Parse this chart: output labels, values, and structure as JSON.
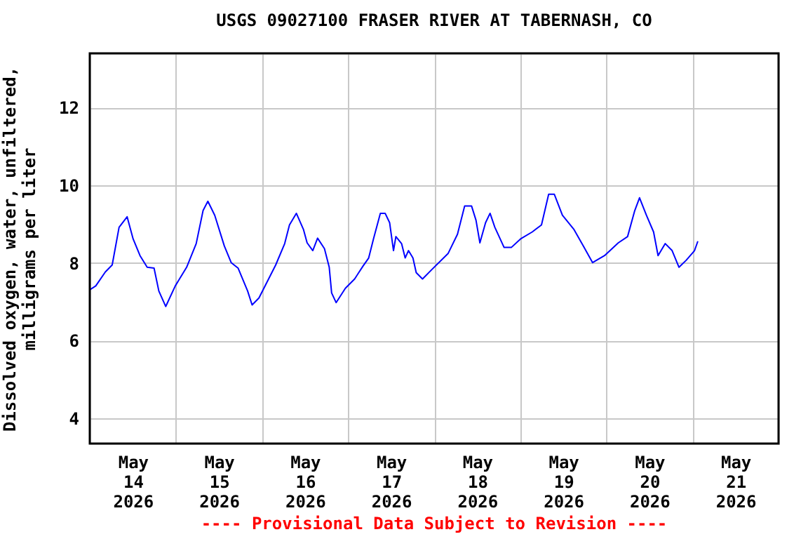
{
  "chart_data": {
    "type": "line",
    "title": "USGS 09027100 FRASER RIVER AT TABERNASH, CO",
    "ylabel": "Dissolved oxygen, water, unfiltered,\nmilligrams per liter",
    "annotations": [
      "---- Provisional Data Subject to Revision ----"
    ],
    "x": [
      "2026-05-14T00:00",
      "2026-05-14T01:40",
      "2026-05-14T04:20",
      "2026-05-14T06:15",
      "2026-05-14T08:10",
      "2026-05-14T10:25",
      "2026-05-14T12:05",
      "2026-05-14T14:00",
      "2026-05-14T16:00",
      "2026-05-14T17:55",
      "2026-05-14T19:15",
      "2026-05-14T21:10",
      "2026-05-14T23:50",
      "2026-05-15T03:00",
      "2026-05-15T05:40",
      "2026-05-15T07:35",
      "2026-05-15T08:55",
      "2026-05-15T10:50",
      "2026-05-15T13:30",
      "2026-05-15T15:25",
      "2026-05-15T17:20",
      "2026-05-15T20:00",
      "2026-05-15T21:15",
      "2026-05-15T23:10",
      "2026-05-16T03:50",
      "2026-05-16T06:20",
      "2026-05-16T07:40",
      "2026-05-16T09:35",
      "2026-05-16T11:35",
      "2026-05-16T12:35",
      "2026-05-16T14:10",
      "2026-05-16T15:30",
      "2026-05-16T17:25",
      "2026-05-16T18:45",
      "2026-05-16T19:25",
      "2026-05-16T20:40",
      "2026-05-16T23:15",
      "2026-05-17T01:50",
      "2026-05-17T04:10",
      "2026-05-17T05:45",
      "2026-05-17T07:05",
      "2026-05-17T09:00",
      "2026-05-17T10:20",
      "2026-05-17T11:35",
      "2026-05-17T12:40",
      "2026-05-17T13:20",
      "2026-05-17T14:55",
      "2026-05-17T15:55",
      "2026-05-17T16:50",
      "2026-05-17T18:05",
      "2026-05-17T19:00",
      "2026-05-17T20:45",
      "2026-05-17T23:20",
      "2026-05-18T03:55",
      "2026-05-18T06:30",
      "2026-05-18T08:30",
      "2026-05-18T10:25",
      "2026-05-18T11:40",
      "2026-05-18T12:45",
      "2026-05-18T14:20",
      "2026-05-18T15:35",
      "2026-05-18T16:55",
      "2026-05-18T19:30",
      "2026-05-18T21:30",
      "2026-05-19T00:05",
      "2026-05-19T03:20",
      "2026-05-19T05:55",
      "2026-05-19T07:55",
      "2026-05-19T09:30",
      "2026-05-19T11:45",
      "2026-05-19T15:00",
      "2026-05-19T17:35",
      "2026-05-19T20:10",
      "2026-05-19T23:30",
      "2026-05-20T03:20",
      "2026-05-20T05:55",
      "2026-05-20T07:55",
      "2026-05-20T09:15",
      "2026-05-20T11:10",
      "2026-05-20T13:10",
      "2026-05-20T14:25",
      "2026-05-20T16:25",
      "2026-05-20T18:20",
      "2026-05-20T20:15",
      "2026-05-20T22:15",
      "2026-05-21T00:35",
      "2026-05-21T01:30"
    ],
    "series": [
      {
        "color": "#0000ff",
        "values": [
          7.31,
          7.41,
          7.77,
          7.95,
          8.92,
          9.19,
          8.62,
          8.19,
          7.89,
          7.87,
          7.28,
          6.88,
          7.41,
          7.89,
          8.5,
          9.35,
          9.59,
          9.23,
          8.44,
          8.01,
          7.87,
          7.28,
          6.92,
          7.1,
          7.95,
          8.5,
          8.98,
          9.28,
          8.86,
          8.52,
          8.32,
          8.64,
          8.37,
          7.89,
          7.23,
          6.98,
          7.35,
          7.59,
          7.92,
          8.13,
          8.62,
          9.28,
          9.28,
          9.04,
          8.32,
          8.68,
          8.5,
          8.13,
          8.32,
          8.13,
          7.75,
          7.59,
          7.83,
          8.25,
          8.74,
          9.47,
          9.47,
          9.1,
          8.52,
          9.04,
          9.28,
          8.92,
          8.4,
          8.4,
          8.62,
          8.8,
          8.98,
          9.77,
          9.77,
          9.23,
          8.86,
          8.44,
          8.01,
          8.19,
          8.52,
          8.68,
          9.35,
          9.68,
          9.23,
          8.8,
          8.19,
          8.5,
          8.32,
          7.89,
          8.07,
          8.32,
          8.56
        ]
      }
    ],
    "xlim": [
      "2026-05-14T00:00",
      "2026-05-22T00:00"
    ],
    "xticks": [
      {
        "value": "2026-05-14T12:00",
        "label": "May 14 2026"
      },
      {
        "value": "2026-05-15T00:00",
        "label": null
      },
      {
        "value": "2026-05-15T12:00",
        "label": "May 15 2026"
      },
      {
        "value": "2026-05-16T00:00",
        "label": null
      },
      {
        "value": "2026-05-16T12:00",
        "label": "May 16 2026"
      },
      {
        "value": "2026-05-17T00:00",
        "label": null
      },
      {
        "value": "2026-05-17T12:00",
        "label": "May 17 2026"
      },
      {
        "value": "2026-05-18T00:00",
        "label": null
      },
      {
        "value": "2026-05-18T12:00",
        "label": "May 18 2026"
      },
      {
        "value": "2026-05-19T00:00",
        "label": null
      },
      {
        "value": "2026-05-19T12:00",
        "label": "May 19 2026"
      },
      {
        "value": "2026-05-20T00:00",
        "label": null
      },
      {
        "value": "2026-05-20T12:00",
        "label": "May 20 2026"
      },
      {
        "value": "2026-05-21T00:00",
        "label": null
      },
      {
        "value": "2026-05-21T12:00",
        "label": "May 21 2026"
      }
    ],
    "ylim": [
      3.35,
      13.4
    ],
    "yticks": [
      4,
      6,
      8,
      10,
      12
    ],
    "grid": true,
    "legend": false,
    "marker": "none",
    "line_style": "solid"
  }
}
